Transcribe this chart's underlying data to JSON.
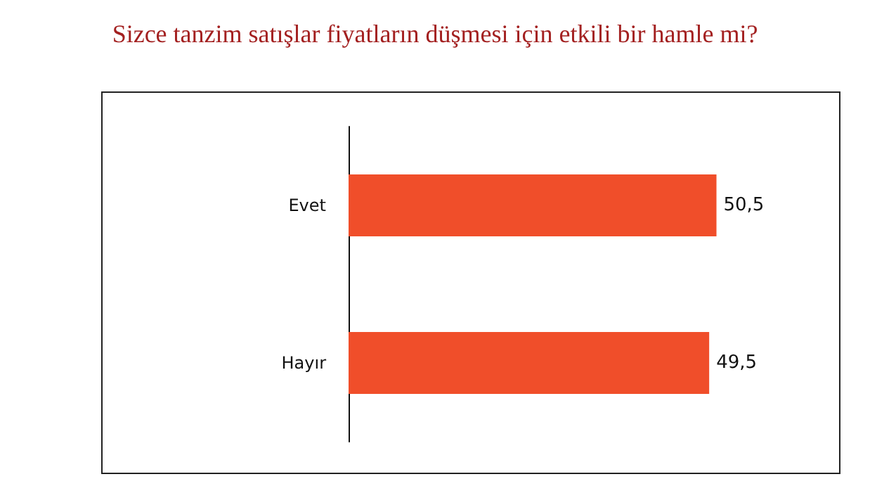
{
  "chart_data": {
    "type": "bar",
    "orientation": "horizontal",
    "title": "Sizce tanzim satışlar fiyatların düşmesi için etkili bir hamle mi?",
    "categories": [
      "Evet",
      "Hayır"
    ],
    "values": [
      50.5,
      49.5
    ],
    "value_labels": [
      "50,5",
      "49,5"
    ],
    "color": "#f04e2a"
  }
}
